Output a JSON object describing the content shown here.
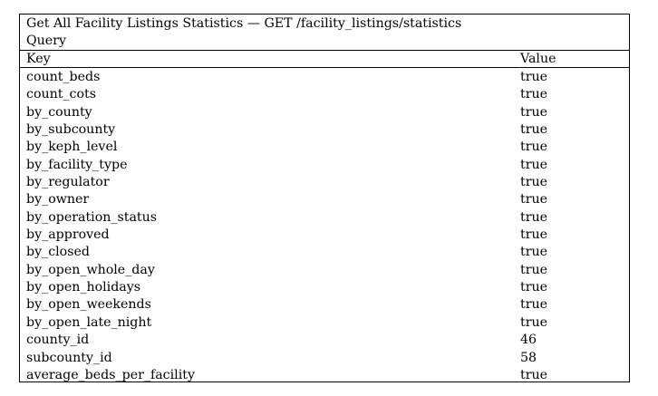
{
  "title": "Get All Facility Listings Statistics — GET /facility_listings/statistics",
  "section": "Query",
  "columns": {
    "key": "Key",
    "value": "Value"
  },
  "rows": [
    {
      "key": "count_beds",
      "value": "true"
    },
    {
      "key": "count_cots",
      "value": "true"
    },
    {
      "key": "by_county",
      "value": "true"
    },
    {
      "key": "by_subcounty",
      "value": "true"
    },
    {
      "key": "by_keph_level",
      "value": "true"
    },
    {
      "key": "by_facility_type",
      "value": "true"
    },
    {
      "key": "by_regulator",
      "value": "true"
    },
    {
      "key": "by_owner",
      "value": "true"
    },
    {
      "key": "by_operation_status",
      "value": "true"
    },
    {
      "key": "by_approved",
      "value": "true"
    },
    {
      "key": "by_closed",
      "value": "true"
    },
    {
      "key": "by_open_whole_day",
      "value": "true"
    },
    {
      "key": "by_open_holidays",
      "value": "true"
    },
    {
      "key": "by_open_weekends",
      "value": "true"
    },
    {
      "key": "by_open_late_night",
      "value": "true"
    },
    {
      "key": "county_id",
      "value": "46"
    },
    {
      "key": "subcounty_id",
      "value": "58"
    },
    {
      "key": "average_beds_per_facility",
      "value": "true"
    }
  ]
}
